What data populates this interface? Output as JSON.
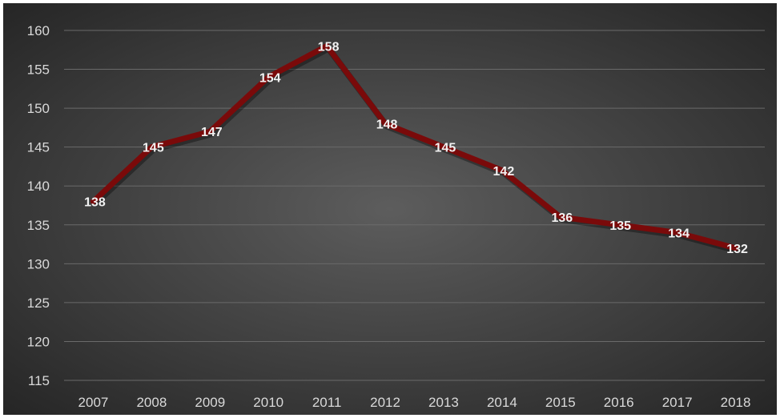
{
  "chart_data": {
    "type": "line",
    "categories": [
      "2007",
      "2008",
      "2009",
      "2010",
      "2011",
      "2012",
      "2013",
      "2014",
      "2015",
      "2016",
      "2017",
      "2018"
    ],
    "values": [
      138,
      145,
      147,
      154,
      158,
      148,
      145,
      142,
      136,
      135,
      134,
      132
    ],
    "ylim": [
      115,
      160
    ],
    "yticks": [
      115,
      120,
      125,
      130,
      135,
      140,
      145,
      150,
      155,
      160
    ],
    "grid": true,
    "data_labels": true,
    "colors": {
      "line": "#7a0a0a",
      "background_center": "#5a5a5a",
      "background_edge": "#2a2a2a",
      "grid": "#6a6a6a",
      "text": "#d9d9d9"
    }
  }
}
